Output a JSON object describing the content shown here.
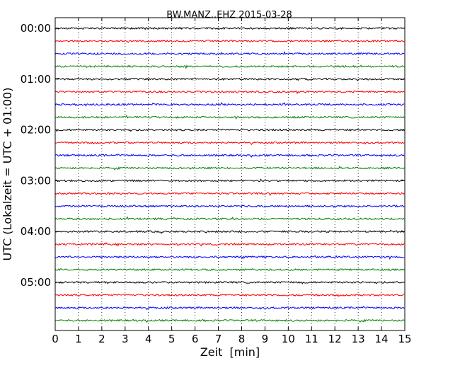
{
  "chart_data": {
    "type": "line",
    "title": "BW.MANZ..EHZ 2015-03-28",
    "xlabel": "Zeit  [min]",
    "ylabel": "UTC (Lokalzeit = UTC + 01:00)",
    "xlim": [
      0,
      15
    ],
    "x_ticks": [
      0,
      1,
      2,
      3,
      4,
      5,
      6,
      7,
      8,
      9,
      10,
      11,
      12,
      13,
      14,
      15
    ],
    "x_tick_labels": [
      "0",
      "1",
      "2",
      "3",
      "4",
      "5",
      "6",
      "7",
      "8",
      "9",
      "10",
      "11",
      "12",
      "13",
      "14",
      "15"
    ],
    "y_tick_labels": [
      "00:00",
      "01:00",
      "02:00",
      "03:00",
      "04:00",
      "05:00"
    ],
    "rows_per_hour": 4,
    "row_count": 24,
    "color_cycle": [
      "#000000",
      "#ff0000",
      "#0000ff",
      "#008000"
    ],
    "grid": {
      "vertical_dotted": true,
      "horizontal": false
    },
    "legend": "none"
  }
}
